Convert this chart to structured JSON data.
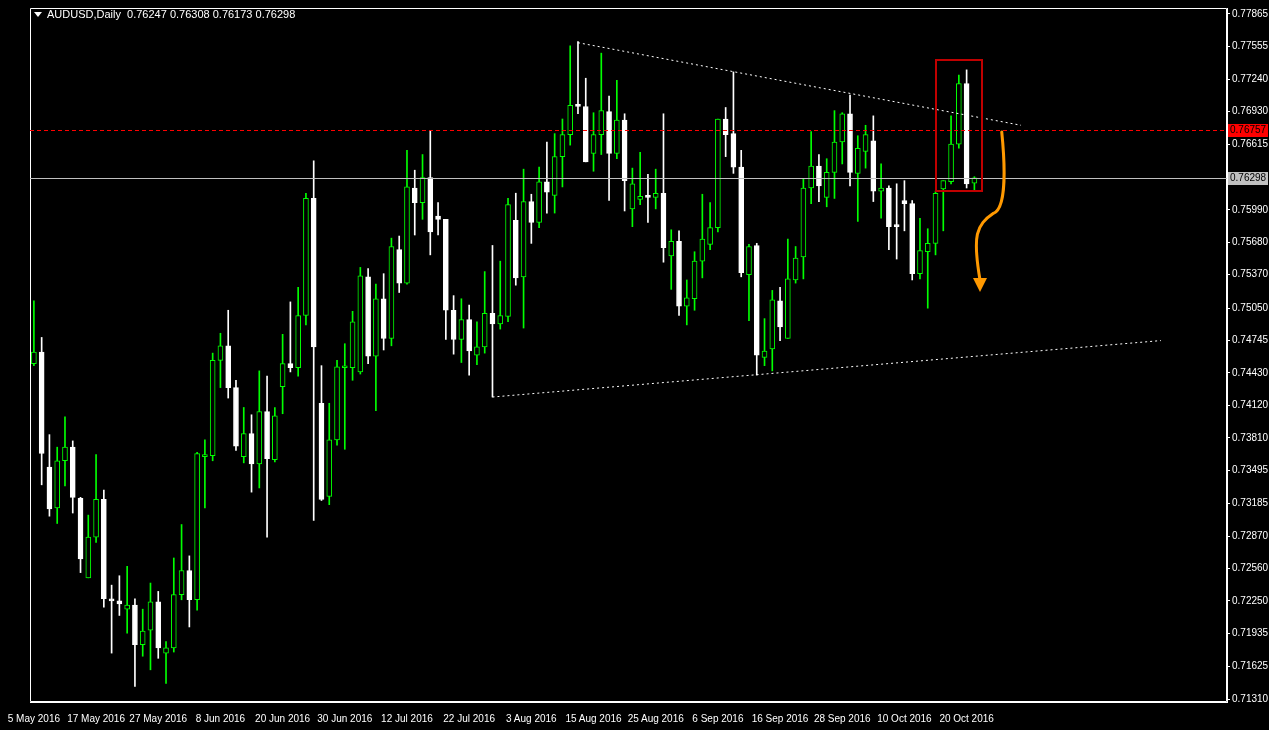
{
  "chart_data": {
    "type": "candlestick",
    "title": "AUDUSD,Daily  0.76247 0.76308 0.76173 0.76298",
    "categories": [
      "5 May 2016",
      null,
      null,
      null,
      null,
      null,
      null,
      null,
      "17 May 2016",
      null,
      null,
      null,
      null,
      null,
      null,
      null,
      "27 May 2016",
      null,
      null,
      null,
      null,
      null,
      null,
      null,
      "8 Jun 2016",
      null,
      null,
      null,
      null,
      null,
      null,
      null,
      "20 Jun 2016",
      null,
      null,
      null,
      null,
      null,
      null,
      null,
      "30 Jun 2016",
      null,
      null,
      null,
      null,
      null,
      null,
      null,
      "12 Jul 2016",
      null,
      null,
      null,
      null,
      null,
      null,
      null,
      "22 Jul 2016",
      null,
      null,
      null,
      null,
      null,
      null,
      null,
      "3 Aug 2016",
      null,
      null,
      null,
      null,
      null,
      null,
      null,
      "15 Aug 2016",
      null,
      null,
      null,
      null,
      null,
      null,
      null,
      "25 Aug 2016",
      null,
      null,
      null,
      null,
      null,
      null,
      null,
      "6 Sep 2016",
      null,
      null,
      null,
      null,
      null,
      null,
      null,
      "16 Sep 2016",
      null,
      null,
      null,
      null,
      null,
      null,
      null,
      "28 Sep 2016",
      null,
      null,
      null,
      null,
      null,
      null,
      null,
      "10 Oct 2016",
      null,
      null,
      null,
      null,
      null,
      null,
      null,
      "20 Oct 2016",
      null,
      null,
      null,
      null,
      null,
      null,
      null,
      null,
      null,
      null,
      null,
      null,
      null,
      null,
      null,
      null,
      null,
      null,
      null,
      null,
      null,
      null,
      null,
      null,
      null,
      null,
      null,
      null,
      null,
      null,
      null,
      null,
      null
    ],
    "colors": [
      "#00ff00",
      "#ffffff",
      "#ffffff",
      "#00ff00",
      "#00ff00",
      "#ffffff",
      "#ffffff",
      "#00ff00",
      "#00ff00",
      "#ffffff",
      "#ffffff",
      "#ffffff",
      "#00ff00",
      "#ffffff",
      "#00ff00",
      "#00ff00",
      "#ffffff",
      "#00ff00",
      "#00ff00",
      "#00ff00",
      "#ffffff",
      "#00ff00",
      "#00ff00",
      "#00ff00",
      "#00ff00",
      "#ffffff",
      "#ffffff",
      "#00ff00",
      "#ffffff",
      "#00ff00",
      "#ffffff",
      "#00ff00",
      "#00ff00",
      "#ffffff",
      "#00ff00",
      "#00ff00",
      "#ffffff",
      "#ffffff",
      "#00ff00",
      "#00ff00",
      "#00ff00",
      "#00ff00",
      "#00ff00",
      "#ffffff",
      "#00ff00",
      "#ffffff",
      "#00ff00",
      "#ffffff",
      "#00ff00",
      "#ffffff",
      "#00ff00",
      "#ffffff",
      "#ffffff",
      "#ffffff",
      "#ffffff",
      "#00ff00",
      "#ffffff",
      "#00ff00",
      "#00ff00",
      "#ffffff",
      "#00ff00",
      "#00ff00",
      "#ffffff",
      "#00ff00",
      "#ffffff",
      "#00ff00",
      "#ffffff",
      "#00ff00",
      "#00ff00",
      "#00ff00",
      "#ffffff",
      "#ffffff",
      "#00ff00",
      "#00ff00",
      "#ffffff",
      "#00ff00",
      "#ffffff",
      "#00ff00",
      "#00ff00",
      "#ffffff",
      "#00ff00",
      "#ffffff",
      "#00ff00",
      "#ffffff",
      "#00ff00",
      "#00ff00",
      "#00ff00",
      "#00ff00",
      "#00ff00",
      "#ffffff",
      "#ffffff",
      "#ffffff",
      "#00ff00",
      "#ffffff",
      "#00ff00",
      "#00ff00",
      "#ffffff",
      "#00ff00",
      "#00ff00",
      "#00ff00",
      "#00ff00",
      "#ffffff",
      "#00ff00",
      "#00ff00",
      "#00ff00",
      "#ffffff",
      "#00ff00",
      "#00ff00",
      "#ffffff",
      "#00ff00",
      "#ffffff",
      "#ffffff",
      "#ffffff",
      "#ffffff",
      "#00ff00",
      "#00ff00",
      "#00ff00",
      "#00ff00",
      "#00ff00",
      "#00ff00",
      "#ffffff",
      "#00ff00",
      null,
      null,
      null,
      null,
      null,
      null,
      null,
      null,
      null,
      null,
      null,
      null,
      null,
      null,
      null,
      null,
      null,
      null,
      null,
      null,
      null,
      null,
      null,
      null,
      null,
      null,
      null,
      null,
      null,
      null,
      null,
      null
    ],
    "ohlc": [
      [
        0.7452,
        0.7512,
        0.745,
        0.7463
      ],
      [
        0.7463,
        0.7477,
        0.7336,
        0.7366
      ],
      [
        0.7353,
        0.7384,
        0.7306,
        0.7313
      ],
      [
        0.7314,
        0.7372,
        0.7299,
        0.7359
      ],
      [
        0.7359,
        0.7401,
        0.7335,
        0.7372
      ],
      [
        0.7372,
        0.7378,
        0.7309,
        0.7324
      ],
      [
        0.7323,
        0.7324,
        0.7252,
        0.7265
      ],
      [
        0.7247,
        0.7307,
        0.7247,
        0.7286
      ],
      [
        0.7286,
        0.7365,
        0.7281,
        0.7322
      ],
      [
        0.7322,
        0.7331,
        0.7219,
        0.7227
      ],
      [
        0.7226,
        0.724,
        0.7175,
        0.7225
      ],
      [
        0.7225,
        0.7249,
        0.7211,
        0.7222
      ],
      [
        0.7217,
        0.7258,
        0.7194,
        0.7221
      ],
      [
        0.7221,
        0.7227,
        0.7143,
        0.7183
      ],
      [
        0.7183,
        0.7217,
        0.7172,
        0.7196
      ],
      [
        0.7197,
        0.7242,
        0.7159,
        0.7224
      ],
      [
        0.7224,
        0.7234,
        0.717,
        0.718
      ],
      [
        0.7175,
        0.7186,
        0.7146,
        0.718
      ],
      [
        0.718,
        0.7266,
        0.7176,
        0.7231
      ],
      [
        0.7231,
        0.7298,
        0.7226,
        0.7254
      ],
      [
        0.7254,
        0.7268,
        0.72,
        0.7226
      ],
      [
        0.7226,
        0.7367,
        0.7216,
        0.7366
      ],
      [
        0.7363,
        0.7379,
        0.7314,
        0.7364
      ],
      [
        0.7364,
        0.7462,
        0.7359,
        0.7455
      ],
      [
        0.7455,
        0.7481,
        0.7429,
        0.7469
      ],
      [
        0.7469,
        0.7503,
        0.7419,
        0.7429
      ],
      [
        0.7429,
        0.7436,
        0.7369,
        0.7373
      ],
      [
        0.7363,
        0.741,
        0.7357,
        0.7385
      ],
      [
        0.7385,
        0.7403,
        0.7329,
        0.7356
      ],
      [
        0.7356,
        0.7445,
        0.7333,
        0.7406
      ],
      [
        0.7406,
        0.744,
        0.7286,
        0.7361
      ],
      [
        0.736,
        0.741,
        0.7358,
        0.7402
      ],
      [
        0.743,
        0.748,
        0.7404,
        0.7452
      ],
      [
        0.7452,
        0.7511,
        0.7444,
        0.7448
      ],
      [
        0.7448,
        0.7525,
        0.744,
        0.7498
      ],
      [
        0.7498,
        0.7615,
        0.7489,
        0.761
      ],
      [
        0.761,
        0.7646,
        0.7302,
        0.7468
      ],
      [
        0.7414,
        0.745,
        0.7321,
        0.7322
      ],
      [
        0.7325,
        0.7414,
        0.7317,
        0.7379
      ],
      [
        0.7379,
        0.7455,
        0.7374,
        0.7449
      ],
      [
        0.7448,
        0.7471,
        0.737,
        0.7449
      ],
      [
        0.7448,
        0.7502,
        0.7436,
        0.7492
      ],
      [
        0.7444,
        0.7544,
        0.7442,
        0.7536
      ],
      [
        0.7535,
        0.7543,
        0.7452,
        0.7459
      ],
      [
        0.7459,
        0.7528,
        0.7407,
        0.7514
      ],
      [
        0.7514,
        0.7538,
        0.7465,
        0.7476
      ],
      [
        0.7476,
        0.7572,
        0.7469,
        0.7564
      ],
      [
        0.7561,
        0.7574,
        0.752,
        0.7529
      ],
      [
        0.7529,
        0.7656,
        0.7528,
        0.7621
      ],
      [
        0.762,
        0.7637,
        0.7575,
        0.7606
      ],
      [
        0.7606,
        0.7652,
        0.759,
        0.763
      ],
      [
        0.763,
        0.7675,
        0.7556,
        0.7578
      ],
      [
        0.7593,
        0.7606,
        0.7575,
        0.759
      ],
      [
        0.759,
        0.759,
        0.7475,
        0.7503
      ],
      [
        0.7503,
        0.7517,
        0.7461,
        0.7475
      ],
      [
        0.7475,
        0.7514,
        0.7453,
        0.7494
      ],
      [
        0.7494,
        0.7508,
        0.7441,
        0.7464
      ],
      [
        0.746,
        0.7492,
        0.7451,
        0.7468
      ],
      [
        0.7468,
        0.754,
        0.7462,
        0.75
      ],
      [
        0.75,
        0.7565,
        0.742,
        0.749
      ],
      [
        0.749,
        0.755,
        0.7485,
        0.7498
      ],
      [
        0.7497,
        0.761,
        0.7492,
        0.7604
      ],
      [
        0.7589,
        0.7615,
        0.7527,
        0.7534
      ],
      [
        0.7535,
        0.7638,
        0.7486,
        0.7607
      ],
      [
        0.7607,
        0.7614,
        0.7567,
        0.7587
      ],
      [
        0.7587,
        0.764,
        0.7582,
        0.7626
      ],
      [
        0.7626,
        0.7664,
        0.7596,
        0.7616
      ],
      [
        0.7613,
        0.7672,
        0.7596,
        0.765
      ],
      [
        0.765,
        0.7686,
        0.7621,
        0.7671
      ],
      [
        0.7671,
        0.7756,
        0.7661,
        0.7699
      ],
      [
        0.77,
        0.776,
        0.7691,
        0.7698
      ],
      [
        0.7698,
        0.7725,
        0.7645,
        0.7645
      ],
      [
        0.7653,
        0.7692,
        0.7636,
        0.7671
      ],
      [
        0.7671,
        0.7749,
        0.7652,
        0.7694
      ],
      [
        0.7693,
        0.7708,
        0.7608,
        0.7653
      ],
      [
        0.7653,
        0.7723,
        0.7648,
        0.7685
      ],
      [
        0.7685,
        0.7691,
        0.7598,
        0.7627
      ],
      [
        0.76,
        0.7639,
        0.7583,
        0.7624
      ],
      [
        0.7609,
        0.7654,
        0.7604,
        0.7612
      ],
      [
        0.7613,
        0.7633,
        0.7587,
        0.7611
      ],
      [
        0.7611,
        0.7638,
        0.76,
        0.7615
      ],
      [
        0.7615,
        0.7691,
        0.7549,
        0.7563
      ],
      [
        0.7555,
        0.758,
        0.7523,
        0.7569
      ],
      [
        0.7569,
        0.7579,
        0.7498,
        0.7507
      ],
      [
        0.7507,
        0.7532,
        0.7489,
        0.7515
      ],
      [
        0.7514,
        0.7559,
        0.7503,
        0.755
      ],
      [
        0.755,
        0.7614,
        0.7534,
        0.7571
      ],
      [
        0.7566,
        0.7606,
        0.7561,
        0.7582
      ],
      [
        0.7582,
        0.7686,
        0.7578,
        0.7686
      ],
      [
        0.7686,
        0.7697,
        0.765,
        0.7671
      ],
      [
        0.7672,
        0.7731,
        0.7634,
        0.764
      ],
      [
        0.764,
        0.7656,
        0.7535,
        0.7539
      ],
      [
        0.7537,
        0.7566,
        0.7493,
        0.7564
      ],
      [
        0.7565,
        0.7567,
        0.7441,
        0.746
      ],
      [
        0.7458,
        0.7495,
        0.745,
        0.7464
      ],
      [
        0.7466,
        0.7522,
        0.7445,
        0.7513
      ],
      [
        0.7512,
        0.7525,
        0.7474,
        0.7487
      ],
      [
        0.7476,
        0.7571,
        0.7476,
        0.7533
      ],
      [
        0.7532,
        0.7564,
        0.7529,
        0.7553
      ],
      [
        0.7554,
        0.7629,
        0.7533,
        0.762
      ],
      [
        0.762,
        0.7674,
        0.7605,
        0.7641
      ],
      [
        0.7641,
        0.7652,
        0.7607,
        0.7622
      ],
      [
        0.7611,
        0.7648,
        0.7602,
        0.7635
      ],
      [
        0.7635,
        0.7694,
        0.761,
        0.7664
      ],
      [
        0.7664,
        0.7692,
        0.7643,
        0.7691
      ],
      [
        0.7691,
        0.7709,
        0.7622,
        0.7635
      ],
      [
        0.7634,
        0.767,
        0.7588,
        0.7658
      ],
      [
        0.7655,
        0.768,
        0.7639,
        0.7671
      ],
      [
        0.7665,
        0.7689,
        0.7607,
        0.7617
      ],
      [
        0.7617,
        0.7643,
        0.7591,
        0.762
      ],
      [
        0.762,
        0.7622,
        0.7561,
        0.7583
      ],
      [
        0.7584,
        0.7624,
        0.7552,
        0.7583
      ],
      [
        0.7608,
        0.7627,
        0.7579,
        0.7605
      ],
      [
        0.7605,
        0.7608,
        0.7532,
        0.7538
      ],
      [
        0.7538,
        0.7591,
        0.7533,
        0.756
      ],
      [
        0.7559,
        0.7581,
        0.7505,
        0.7567
      ],
      [
        0.7567,
        0.7617,
        0.7556,
        0.7615
      ],
      [
        0.7619,
        0.7627,
        0.7579,
        0.7627
      ],
      [
        0.7626,
        0.7689,
        0.7624,
        0.7662
      ],
      [
        0.7662,
        0.7728,
        0.7658,
        0.772
      ],
      [
        0.772,
        0.7733,
        0.762,
        0.7624
      ],
      [
        0.76247,
        0.76308,
        0.76173,
        0.76298
      ],
      null,
      null,
      null,
      null,
      null,
      null,
      null,
      null,
      null,
      null,
      null,
      null,
      null,
      null,
      null,
      null,
      null,
      null,
      null,
      null,
      null,
      null,
      null,
      null,
      null,
      null,
      null,
      null,
      null,
      null,
      null,
      null
    ],
    "series": [
      {
        "type": "line",
        "color": "#ffffff",
        "line_style": "dotted",
        "values": [
          null,
          null,
          null,
          null,
          null,
          null,
          null,
          null,
          null,
          null,
          null,
          null,
          null,
          null,
          null,
          null,
          null,
          null,
          null,
          null,
          null,
          null,
          null,
          null,
          null,
          null,
          null,
          null,
          null,
          null,
          null,
          null,
          null,
          null,
          null,
          null,
          null,
          null,
          null,
          null,
          null,
          null,
          null,
          null,
          null,
          null,
          null,
          null,
          null,
          null,
          null,
          null,
          null,
          null,
          null,
          null,
          null,
          null,
          null,
          null,
          null,
          null,
          null,
          null,
          null,
          null,
          null,
          null,
          null,
          null,
          0.7759,
          null,
          null,
          null,
          null,
          null,
          null,
          null,
          null,
          null,
          null,
          null,
          null,
          null,
          null,
          null,
          null,
          null,
          null,
          null,
          null,
          null,
          null,
          null,
          null,
          null,
          null,
          null,
          null,
          null,
          null,
          null,
          null,
          null,
          null,
          null,
          null,
          null,
          null,
          null,
          null,
          null,
          null,
          null,
          null,
          null,
          null,
          null,
          null,
          null,
          null,
          null,
          null,
          null,
          null,
          null,
          null,
          0.768,
          null,
          null,
          null,
          null,
          null,
          null,
          null,
          null,
          null,
          null,
          null,
          null,
          null,
          null,
          null,
          null,
          null,
          null,
          null,
          null,
          null,
          null,
          null,
          null,
          null,
          null
        ]
      },
      {
        "type": "line",
        "color": "#ffffff",
        "line_style": "dotted",
        "values": [
          null,
          null,
          null,
          null,
          null,
          null,
          null,
          null,
          null,
          null,
          null,
          null,
          null,
          null,
          null,
          null,
          null,
          null,
          null,
          null,
          null,
          null,
          null,
          null,
          null,
          null,
          null,
          null,
          null,
          null,
          null,
          null,
          null,
          null,
          null,
          null,
          null,
          null,
          null,
          null,
          null,
          null,
          null,
          null,
          null,
          null,
          null,
          null,
          null,
          null,
          null,
          null,
          null,
          null,
          null,
          null,
          null,
          null,
          null,
          0.742,
          null,
          null,
          null,
          null,
          null,
          null,
          null,
          null,
          null,
          null,
          null,
          null,
          null,
          null,
          null,
          null,
          null,
          null,
          null,
          null,
          null,
          null,
          null,
          null,
          null,
          null,
          null,
          null,
          null,
          null,
          null,
          null,
          null,
          null,
          null,
          null,
          null,
          null,
          null,
          null,
          null,
          null,
          null,
          null,
          null,
          null,
          null,
          null,
          null,
          null,
          null,
          null,
          null,
          null,
          null,
          null,
          null,
          null,
          null,
          null,
          null,
          null,
          null,
          null,
          null,
          null,
          null,
          null,
          null,
          null,
          null,
          null,
          null,
          null,
          null,
          null,
          null,
          null,
          null,
          null,
          null,
          null,
          null,
          null,
          null,
          0.7474,
          null,
          null,
          null,
          null,
          null,
          null,
          null,
          null
        ]
      }
    ],
    "ref_lines": [
      {
        "axis": "y",
        "value": 0.76757,
        "label": "0.76757",
        "color": "#ff0000",
        "line_style": "dashed"
      },
      {
        "axis": "y",
        "value": 0.76298,
        "label": "0.76298",
        "color": "#c0c0c0",
        "line_style": "solid"
      }
    ],
    "ylim": [
      0.71282,
      0.77922
    ],
    "yticks": [
      {
        "value": 0.7131,
        "label": "0.71310"
      },
      {
        "value": 0.71625,
        "label": "0.71625"
      },
      {
        "value": 0.71935,
        "label": "0.71935"
      },
      {
        "value": 0.7225,
        "label": "0.72250"
      },
      {
        "value": 0.7256,
        "label": "0.72560"
      },
      {
        "value": 0.7287,
        "label": "0.72870"
      },
      {
        "value": 0.73185,
        "label": "0.73185"
      },
      {
        "value": 0.73495,
        "label": "0.73495"
      },
      {
        "value": 0.7381,
        "label": "0.73810"
      },
      {
        "value": 0.7412,
        "label": "0.74120"
      },
      {
        "value": 0.7443,
        "label": "0.74430"
      },
      {
        "value": 0.74745,
        "label": "0.74745"
      },
      {
        "value": 0.7505,
        "label": "0.75050"
      },
      {
        "value": 0.7537,
        "label": "0.75370"
      },
      {
        "value": 0.7568,
        "label": "0.75680"
      },
      {
        "value": 0.7599,
        "label": "0.75990"
      },
      {
        "value": 0.76615,
        "label": "0.76615"
      },
      {
        "value": 0.7693,
        "label": "0.76930"
      },
      {
        "value": 0.7724,
        "label": "0.77240"
      },
      {
        "value": 0.77555,
        "label": "0.77555"
      },
      {
        "value": 0.77865,
        "label": "0.77865"
      }
    ]
  }
}
